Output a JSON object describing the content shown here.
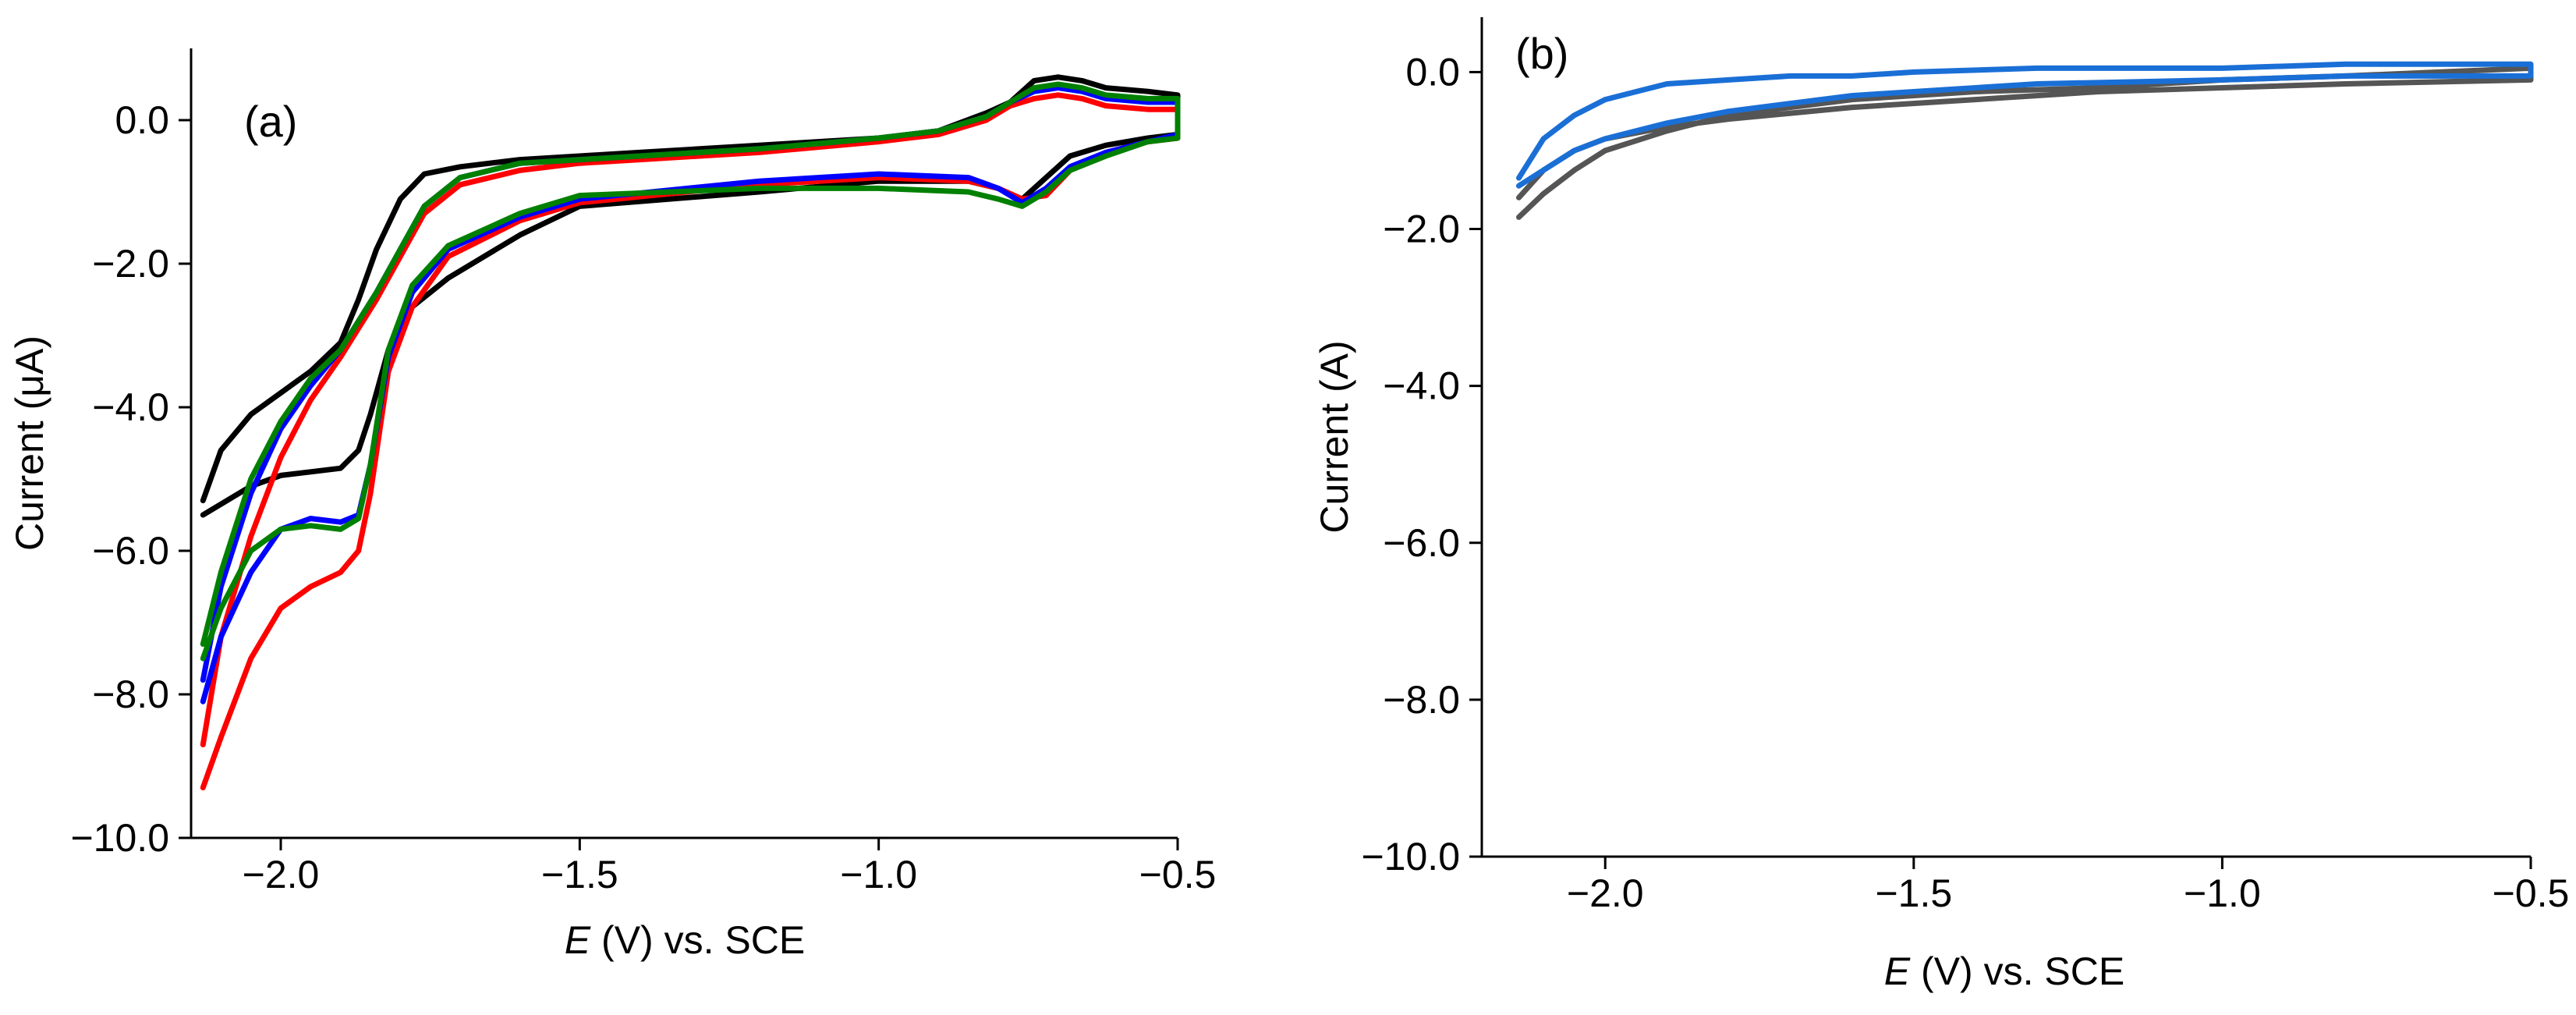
{
  "chart_data": [
    {
      "type": "line",
      "panel_label": "(a)",
      "xlabel_italic": "E",
      "xlabel_rest": " (V) vs. SCE",
      "ylabel": "Current (μA)",
      "xlim": [
        -2.15,
        -0.5
      ],
      "ylim": [
        -10.0,
        1.0
      ],
      "x_ticks": [
        -2.0,
        -1.5,
        -1.0,
        -0.5
      ],
      "x_tick_labels": [
        "−2.0",
        "−1.5",
        "−1.0",
        "−0.5"
      ],
      "y_ticks": [
        0.0,
        -2.0,
        -4.0,
        -6.0,
        -8.0,
        -10.0
      ],
      "y_tick_labels": [
        "0.0",
        "−2.0",
        "−4.0",
        "−6.0",
        "−8.0",
        "−10.0"
      ],
      "series": [
        {
          "name": "black",
          "color": "#000000",
          "x": [
            -2.13,
            -2.05,
            -2.0,
            -1.95,
            -1.9,
            -1.87,
            -1.85,
            -1.82,
            -1.78,
            -1.72,
            -1.6,
            -1.5,
            -1.2,
            -1.0,
            -0.85,
            -0.8,
            -0.76,
            -0.72,
            -0.68,
            -0.62,
            -0.55,
            -0.5,
            -0.5,
            -0.55,
            -0.62,
            -0.66,
            -0.7,
            -0.74,
            -0.78,
            -0.82,
            -0.9,
            -1.0,
            -1.2,
            -1.4,
            -1.5,
            -1.6,
            -1.7,
            -1.76,
            -1.8,
            -1.84,
            -1.87,
            -1.9,
            -1.95,
            -2.0,
            -2.05,
            -2.1,
            -2.13
          ],
          "y": [
            -5.5,
            -5.1,
            -4.95,
            -4.9,
            -4.85,
            -4.6,
            -4.1,
            -3.2,
            -2.6,
            -2.2,
            -1.6,
            -1.2,
            -1.0,
            -0.85,
            -0.85,
            -0.95,
            -1.1,
            -0.8,
            -0.5,
            -0.35,
            -0.25,
            -0.2,
            0.35,
            0.4,
            0.45,
            0.55,
            0.6,
            0.55,
            0.25,
            0.1,
            -0.15,
            -0.25,
            -0.35,
            -0.45,
            -0.5,
            -0.55,
            -0.65,
            -0.75,
            -1.1,
            -1.8,
            -2.5,
            -3.1,
            -3.5,
            -3.8,
            -4.1,
            -4.6,
            -5.3
          ]
        },
        {
          "name": "red",
          "color": "#ff0000",
          "x": [
            -2.13,
            -2.1,
            -2.05,
            -2.0,
            -1.95,
            -1.9,
            -1.87,
            -1.85,
            -1.82,
            -1.78,
            -1.72,
            -1.6,
            -1.5,
            -1.2,
            -1.0,
            -0.85,
            -0.8,
            -0.76,
            -0.72,
            -0.68,
            -0.62,
            -0.55,
            -0.5,
            -0.5,
            -0.55,
            -0.62,
            -0.66,
            -0.7,
            -0.74,
            -0.78,
            -0.82,
            -0.9,
            -1.0,
            -1.2,
            -1.4,
            -1.5,
            -1.6,
            -1.7,
            -1.76,
            -1.8,
            -1.84,
            -1.87,
            -1.9,
            -1.95,
            -2.0,
            -2.05,
            -2.1,
            -2.13
          ],
          "y": [
            -9.3,
            -8.6,
            -7.5,
            -6.8,
            -6.5,
            -6.3,
            -6.0,
            -5.2,
            -3.5,
            -2.6,
            -1.9,
            -1.4,
            -1.15,
            -0.9,
            -0.8,
            -0.85,
            -0.95,
            -1.1,
            -1.05,
            -0.7,
            -0.45,
            -0.3,
            -0.25,
            0.15,
            0.15,
            0.2,
            0.3,
            0.35,
            0.3,
            0.2,
            0.0,
            -0.2,
            -0.3,
            -0.45,
            -0.55,
            -0.6,
            -0.7,
            -0.9,
            -1.3,
            -1.9,
            -2.5,
            -2.9,
            -3.3,
            -3.9,
            -4.7,
            -5.8,
            -7.2,
            -8.7
          ]
        },
        {
          "name": "blue",
          "color": "#0000ff",
          "x": [
            -2.13,
            -2.1,
            -2.05,
            -2.0,
            -1.95,
            -1.9,
            -1.87,
            -1.85,
            -1.82,
            -1.78,
            -1.72,
            -1.6,
            -1.5,
            -1.2,
            -1.0,
            -0.85,
            -0.8,
            -0.76,
            -0.72,
            -0.68,
            -0.62,
            -0.55,
            -0.5,
            -0.5,
            -0.55,
            -0.62,
            -0.66,
            -0.7,
            -0.74,
            -0.78,
            -0.82,
            -0.9,
            -1.0,
            -1.2,
            -1.4,
            -1.5,
            -1.6,
            -1.7,
            -1.76,
            -1.8,
            -1.84,
            -1.87,
            -1.9,
            -1.95,
            -2.0,
            -2.05,
            -2.1,
            -2.13
          ],
          "y": [
            -8.1,
            -7.2,
            -6.3,
            -5.7,
            -5.55,
            -5.6,
            -5.5,
            -4.8,
            -3.3,
            -2.4,
            -1.8,
            -1.35,
            -1.1,
            -0.85,
            -0.75,
            -0.8,
            -0.95,
            -1.15,
            -0.95,
            -0.65,
            -0.45,
            -0.3,
            -0.2,
            0.25,
            0.25,
            0.3,
            0.4,
            0.45,
            0.4,
            0.25,
            0.05,
            -0.15,
            -0.25,
            -0.4,
            -0.5,
            -0.55,
            -0.6,
            -0.8,
            -1.2,
            -1.8,
            -2.4,
            -2.8,
            -3.2,
            -3.7,
            -4.3,
            -5.2,
            -6.5,
            -7.8
          ]
        },
        {
          "name": "green",
          "color": "#008000",
          "x": [
            -2.13,
            -2.1,
            -2.05,
            -2.0,
            -1.95,
            -1.9,
            -1.87,
            -1.85,
            -1.82,
            -1.78,
            -1.72,
            -1.6,
            -1.5,
            -1.2,
            -1.0,
            -0.85,
            -0.8,
            -0.76,
            -0.72,
            -0.68,
            -0.62,
            -0.55,
            -0.5,
            -0.5,
            -0.55,
            -0.62,
            -0.66,
            -0.7,
            -0.74,
            -0.78,
            -0.82,
            -0.9,
            -1.0,
            -1.2,
            -1.4,
            -1.5,
            -1.6,
            -1.7,
            -1.76,
            -1.8,
            -1.84,
            -1.87,
            -1.9,
            -1.95,
            -2.0,
            -2.05,
            -2.1,
            -2.13
          ],
          "y": [
            -7.5,
            -6.8,
            -6.0,
            -5.7,
            -5.65,
            -5.7,
            -5.55,
            -4.8,
            -3.2,
            -2.3,
            -1.75,
            -1.3,
            -1.05,
            -0.95,
            -0.95,
            -1.0,
            -1.1,
            -1.2,
            -1.0,
            -0.7,
            -0.5,
            -0.3,
            -0.25,
            0.3,
            0.3,
            0.35,
            0.45,
            0.5,
            0.45,
            0.25,
            0.05,
            -0.15,
            -0.25,
            -0.4,
            -0.5,
            -0.55,
            -0.6,
            -0.8,
            -1.2,
            -1.8,
            -2.4,
            -2.8,
            -3.2,
            -3.6,
            -4.2,
            -5.0,
            -6.3,
            -7.3
          ]
        }
      ]
    },
    {
      "type": "line",
      "panel_label": "(b)",
      "xlabel_italic": "E",
      "xlabel_rest": " (V) vs. SCE",
      "ylabel": "Current (A)",
      "xlim": [
        -2.2,
        -0.5
      ],
      "ylim": [
        -10.0,
        0.7
      ],
      "x_ticks": [
        -2.0,
        -1.5,
        -1.0,
        -0.5
      ],
      "x_tick_labels": [
        "−2.0",
        "−1.5",
        "−1.0",
        "−0.5"
      ],
      "y_ticks": [
        0.0,
        -2.0,
        -4.0,
        -6.0,
        -8.0,
        -10.0
      ],
      "y_tick_labels": [
        "0.0",
        "−2.0",
        "−4.0",
        "−6.0",
        "−8.0",
        "−10.0"
      ],
      "series": [
        {
          "name": "gray",
          "color": "#555555",
          "x": [
            -2.14,
            -2.1,
            -2.05,
            -2.0,
            -1.9,
            -1.8,
            -1.6,
            -1.4,
            -1.2,
            -1.0,
            -0.8,
            -0.5,
            -0.5,
            -0.8,
            -1.0,
            -1.2,
            -1.4,
            -1.6,
            -1.8,
            -1.9,
            -2.0,
            -2.05,
            -2.1,
            -2.14
          ],
          "y": [
            -1.85,
            -1.55,
            -1.25,
            -1.0,
            -0.75,
            -0.55,
            -0.35,
            -0.25,
            -0.2,
            -0.1,
            -0.05,
            0.05,
            -0.1,
            -0.15,
            -0.2,
            -0.25,
            -0.35,
            -0.45,
            -0.6,
            -0.7,
            -0.85,
            -1.0,
            -1.25,
            -1.6
          ]
        },
        {
          "name": "blue",
          "color": "#1a6fd6",
          "x": [
            -2.14,
            -2.1,
            -2.05,
            -2.0,
            -1.95,
            -1.9,
            -1.8,
            -1.7,
            -1.6,
            -1.5,
            -1.3,
            -1.0,
            -0.8,
            -0.5,
            -0.5,
            -0.8,
            -1.0,
            -1.3,
            -1.5,
            -1.6,
            -1.7,
            -1.8,
            -1.9,
            -1.95,
            -2.0,
            -2.05,
            -2.1,
            -2.14
          ],
          "y": [
            -1.45,
            -1.25,
            -1.0,
            -0.85,
            -0.75,
            -0.65,
            -0.5,
            -0.4,
            -0.3,
            -0.25,
            -0.15,
            -0.1,
            -0.05,
            -0.05,
            0.1,
            0.1,
            0.05,
            0.05,
            0.0,
            -0.05,
            -0.05,
            -0.1,
            -0.15,
            -0.25,
            -0.35,
            -0.55,
            -0.85,
            -1.35
          ]
        }
      ]
    }
  ]
}
